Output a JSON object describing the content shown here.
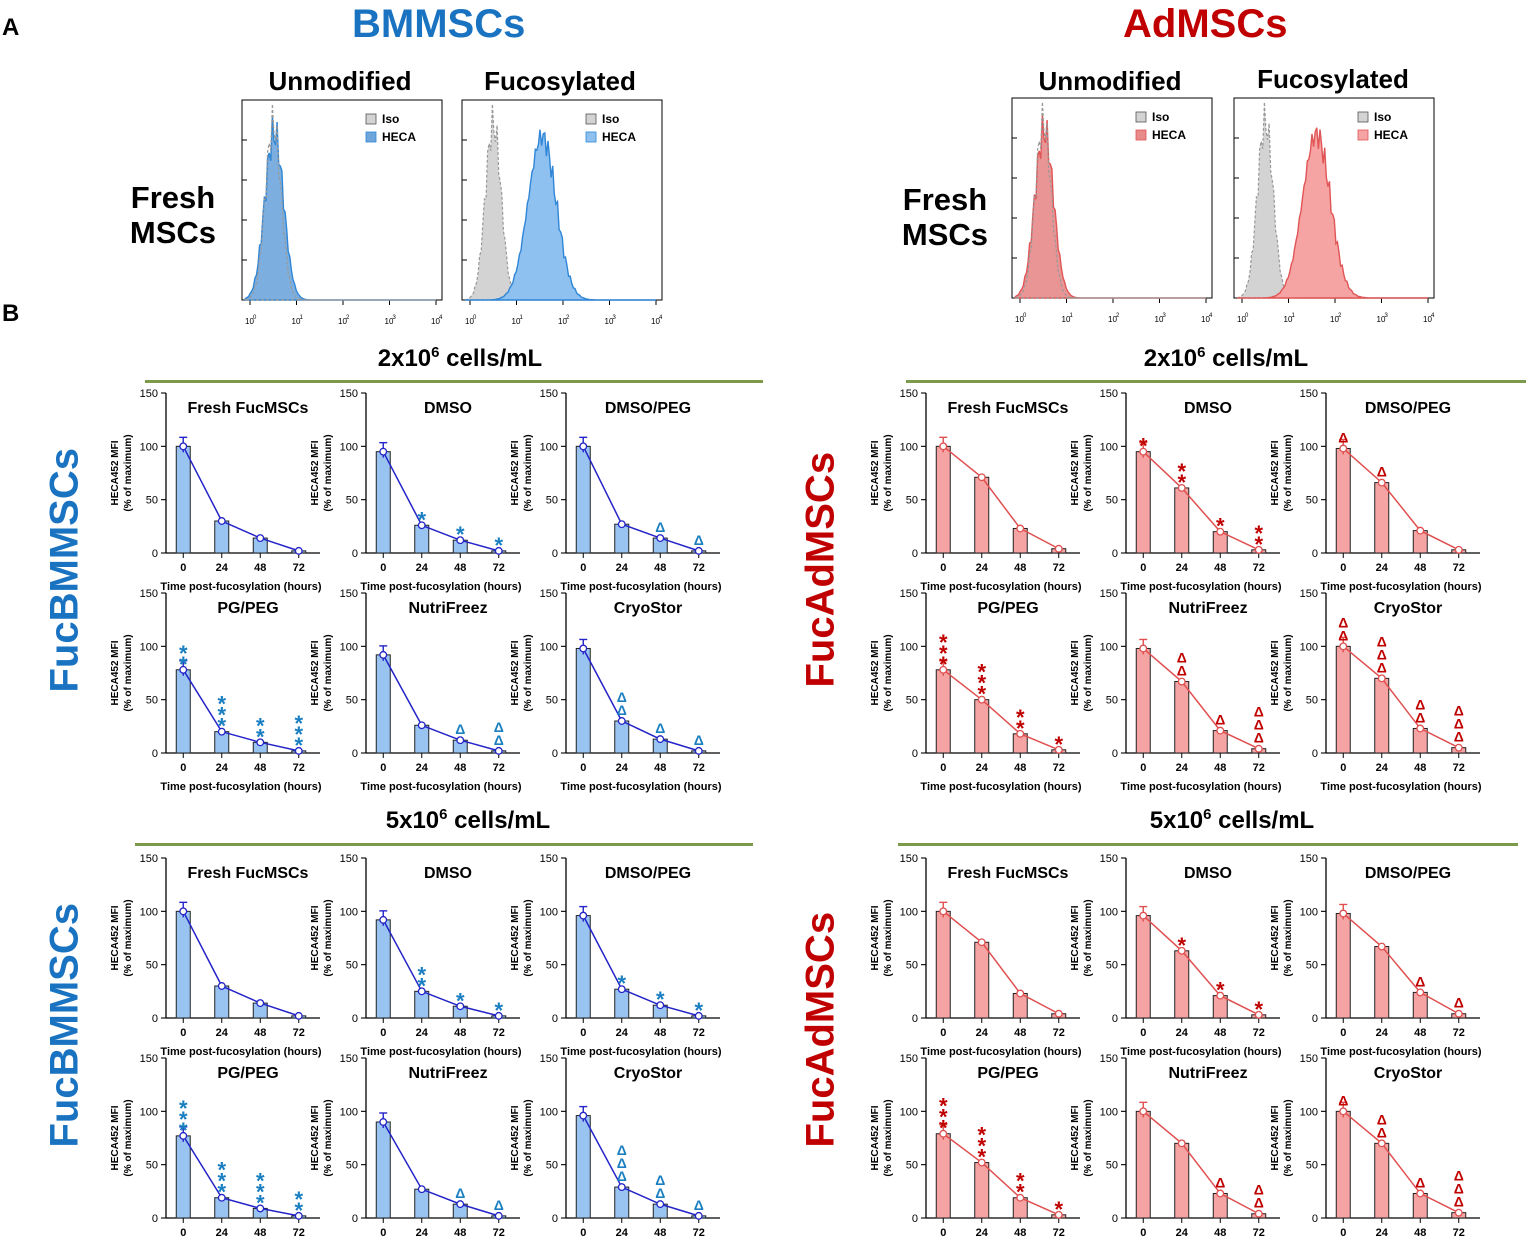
{
  "panels": {
    "a": "A",
    "b": "B"
  },
  "cell_types": [
    {
      "name": "BMMSCs",
      "color": "#1a73c1"
    },
    {
      "name": "AdMSCs",
      "color": "#c00000"
    }
  ],
  "conditions": [
    "Unmodified",
    "Fucosylated"
  ],
  "fresh_label_line1": "Fresh",
  "fresh_label_line2": "MSCs",
  "conc_labels": {
    "low_base": "2x10",
    "high_base": "5x10",
    "exp": "6",
    "unit": " cells/mL"
  },
  "fuc_labels": {
    "bm": "FucBMMSCs",
    "ad": "FucAdMSCs"
  },
  "histogram": {
    "legend": [
      "Iso",
      "HECA"
    ],
    "x_ticks": [
      "10",
      "10",
      "10",
      "10",
      "10"
    ],
    "x_tick_exps": [
      "0",
      "1",
      "2",
      "3",
      "4"
    ],
    "colors": {
      "bm_fill": "#6ea6dc",
      "bm_line": "#2f86d6",
      "bm_fill_fuc": "#8ec1f0",
      "ad_fill": "#e88a8a",
      "ad_line": "#e05555",
      "ad_fill_fuc": "#f5a3a3",
      "iso_fill": "#d3d3d3",
      "iso_line": "#999999"
    }
  },
  "axis": {
    "ylabel_line1": "HECA452 MFI",
    "ylabel_line2": "(% of maximum)",
    "xlabel": "Time post-fucosylation (hours)",
    "y_ticks": [
      "0",
      "50",
      "100",
      "150"
    ],
    "x_ticks": [
      "0",
      "24",
      "48",
      "72"
    ]
  },
  "colors": {
    "bm_bar": "#99c4f2",
    "bm_line": "#2424c8",
    "bm_marker": "#1a7fc1",
    "ad_bar": "#f5a3a3",
    "ad_line": "#e05050",
    "ad_marker": "#c00000",
    "divider": "#7d9a4a"
  },
  "chart_data": [
    {
      "group": "bm-low",
      "type": "bar",
      "title": "Fresh FucMSCs",
      "categories": [
        "0",
        "24",
        "48",
        "72"
      ],
      "values": [
        100,
        30,
        14,
        2
      ],
      "marks": [
        "",
        "",
        "",
        ""
      ],
      "ylim": [
        0,
        150
      ]
    },
    {
      "group": "bm-low",
      "type": "bar",
      "title": "DMSO",
      "categories": [
        "0",
        "24",
        "48",
        "72"
      ],
      "values": [
        95,
        26,
        12,
        2
      ],
      "marks": [
        "",
        "*",
        "*",
        "*"
      ],
      "ylim": [
        0,
        150
      ]
    },
    {
      "group": "bm-low",
      "type": "bar",
      "title": "DMSO/PEG",
      "categories": [
        "0",
        "24",
        "48",
        "72"
      ],
      "values": [
        100,
        27,
        14,
        2
      ],
      "marks": [
        "",
        "",
        "Δ",
        "Δ"
      ],
      "ylim": [
        0,
        150
      ]
    },
    {
      "group": "bm-low",
      "type": "bar",
      "title": "PG/PEG",
      "categories": [
        "0",
        "24",
        "48",
        "72"
      ],
      "values": [
        78,
        20,
        10,
        2
      ],
      "marks": [
        "**",
        "***",
        "**",
        "***"
      ],
      "ylim": [
        0,
        150
      ]
    },
    {
      "group": "bm-low",
      "type": "bar",
      "title": "NutriFreez",
      "categories": [
        "0",
        "24",
        "48",
        "72"
      ],
      "values": [
        92,
        26,
        12,
        2
      ],
      "marks": [
        "",
        "",
        "Δ",
        "ΔΔ"
      ],
      "ylim": [
        0,
        150
      ]
    },
    {
      "group": "bm-low",
      "type": "bar",
      "title": "CryoStor",
      "categories": [
        "0",
        "24",
        "48",
        "72"
      ],
      "values": [
        98,
        30,
        13,
        2
      ],
      "marks": [
        "",
        "ΔΔ",
        "Δ",
        "Δ"
      ],
      "ylim": [
        0,
        150
      ]
    },
    {
      "group": "ad-low",
      "type": "bar",
      "title": "Fresh FucMSCs",
      "categories": [
        "0",
        "24",
        "48",
        "72"
      ],
      "values": [
        100,
        71,
        23,
        4
      ],
      "marks": [
        "",
        "",
        "",
        ""
      ],
      "ylim": [
        0,
        150
      ]
    },
    {
      "group": "ad-low",
      "type": "bar",
      "title": "DMSO",
      "categories": [
        "0",
        "24",
        "48",
        "72"
      ],
      "values": [
        95,
        61,
        20,
        3
      ],
      "marks": [
        "*",
        "**",
        "*",
        "**"
      ],
      "ylim": [
        0,
        150
      ]
    },
    {
      "group": "ad-low",
      "type": "bar",
      "title": "DMSO/PEG",
      "categories": [
        "0",
        "24",
        "48",
        "72"
      ],
      "values": [
        98,
        66,
        21,
        3
      ],
      "marks": [
        "Δ",
        "Δ",
        "",
        ""
      ],
      "ylim": [
        0,
        150
      ]
    },
    {
      "group": "ad-low",
      "type": "bar",
      "title": "PG/PEG",
      "categories": [
        "0",
        "24",
        "48",
        "72"
      ],
      "values": [
        78,
        50,
        18,
        3
      ],
      "marks": [
        "***",
        "***",
        "**",
        "*"
      ],
      "ylim": [
        0,
        150
      ]
    },
    {
      "group": "ad-low",
      "type": "bar",
      "title": "NutriFreez",
      "categories": [
        "0",
        "24",
        "48",
        "72"
      ],
      "values": [
        98,
        67,
        21,
        4
      ],
      "marks": [
        "",
        "ΔΔ",
        "Δ",
        "ΔΔΔ"
      ],
      "ylim": [
        0,
        150
      ]
    },
    {
      "group": "ad-low",
      "type": "bar",
      "title": "CryoStor",
      "categories": [
        "0",
        "24",
        "48",
        "72"
      ],
      "values": [
        100,
        70,
        23,
        5
      ],
      "marks": [
        "ΔΔ",
        "ΔΔΔ",
        "ΔΔ",
        "ΔΔΔ"
      ],
      "ylim": [
        0,
        150
      ]
    },
    {
      "group": "bm-high",
      "type": "bar",
      "title": "Fresh FucMSCs",
      "categories": [
        "0",
        "24",
        "48",
        "72"
      ],
      "values": [
        100,
        30,
        14,
        2
      ],
      "marks": [
        "",
        "",
        "",
        ""
      ],
      "ylim": [
        0,
        150
      ]
    },
    {
      "group": "bm-high",
      "type": "bar",
      "title": "DMSO",
      "categories": [
        "0",
        "24",
        "48",
        "72"
      ],
      "values": [
        92,
        25,
        11,
        2
      ],
      "marks": [
        "",
        "**",
        "*",
        "*"
      ],
      "ylim": [
        0,
        150
      ]
    },
    {
      "group": "bm-high",
      "type": "bar",
      "title": "DMSO/PEG",
      "categories": [
        "0",
        "24",
        "48",
        "72"
      ],
      "values": [
        96,
        27,
        12,
        2
      ],
      "marks": [
        "",
        "*",
        "*",
        "*"
      ],
      "ylim": [
        0,
        150
      ]
    },
    {
      "group": "bm-high",
      "type": "bar",
      "title": "PG/PEG",
      "categories": [
        "0",
        "24",
        "48",
        "72"
      ],
      "values": [
        77,
        19,
        9,
        2
      ],
      "marks": [
        "***",
        "***",
        "***",
        "**"
      ],
      "ylim": [
        0,
        150
      ]
    },
    {
      "group": "bm-high",
      "type": "bar",
      "title": "NutriFreez",
      "categories": [
        "0",
        "24",
        "48",
        "72"
      ],
      "values": [
        90,
        27,
        13,
        2
      ],
      "marks": [
        "",
        "",
        "Δ",
        "Δ"
      ],
      "ylim": [
        0,
        150
      ]
    },
    {
      "group": "bm-high",
      "type": "bar",
      "title": "CryoStor",
      "categories": [
        "0",
        "24",
        "48",
        "72"
      ],
      "values": [
        96,
        29,
        13,
        2
      ],
      "marks": [
        "",
        "ΔΔΔ",
        "ΔΔ",
        "Δ"
      ],
      "ylim": [
        0,
        150
      ]
    },
    {
      "group": "ad-high",
      "type": "bar",
      "title": "Fresh FucMSCs",
      "categories": [
        "0",
        "24",
        "48",
        "72"
      ],
      "values": [
        100,
        71,
        23,
        4
      ],
      "marks": [
        "",
        "",
        "",
        ""
      ],
      "ylim": [
        0,
        150
      ]
    },
    {
      "group": "ad-high",
      "type": "bar",
      "title": "DMSO",
      "categories": [
        "0",
        "24",
        "48",
        "72"
      ],
      "values": [
        96,
        63,
        21,
        3
      ],
      "marks": [
        "",
        "*",
        "*",
        "*"
      ],
      "ylim": [
        0,
        150
      ]
    },
    {
      "group": "ad-high",
      "type": "bar",
      "title": "DMSO/PEG",
      "categories": [
        "0",
        "24",
        "48",
        "72"
      ],
      "values": [
        98,
        67,
        24,
        4
      ],
      "marks": [
        "",
        "",
        "Δ",
        "Δ"
      ],
      "ylim": [
        0,
        150
      ]
    },
    {
      "group": "ad-high",
      "type": "bar",
      "title": "PG/PEG",
      "categories": [
        "0",
        "24",
        "48",
        "72"
      ],
      "values": [
        79,
        52,
        19,
        3
      ],
      "marks": [
        "***",
        "***",
        "**",
        "*"
      ],
      "ylim": [
        0,
        150
      ]
    },
    {
      "group": "ad-high",
      "type": "bar",
      "title": "NutriFreez",
      "categories": [
        "0",
        "24",
        "48",
        "72"
      ],
      "values": [
        100,
        70,
        23,
        4
      ],
      "marks": [
        "",
        "",
        "Δ",
        "ΔΔ"
      ],
      "ylim": [
        0,
        150
      ]
    },
    {
      "group": "ad-high",
      "type": "bar",
      "title": "CryoStor",
      "categories": [
        "0",
        "24",
        "48",
        "72"
      ],
      "values": [
        100,
        70,
        23,
        5
      ],
      "marks": [
        "Δ",
        "ΔΔ",
        "Δ",
        "ΔΔΔ"
      ],
      "ylim": [
        0,
        150
      ]
    }
  ]
}
